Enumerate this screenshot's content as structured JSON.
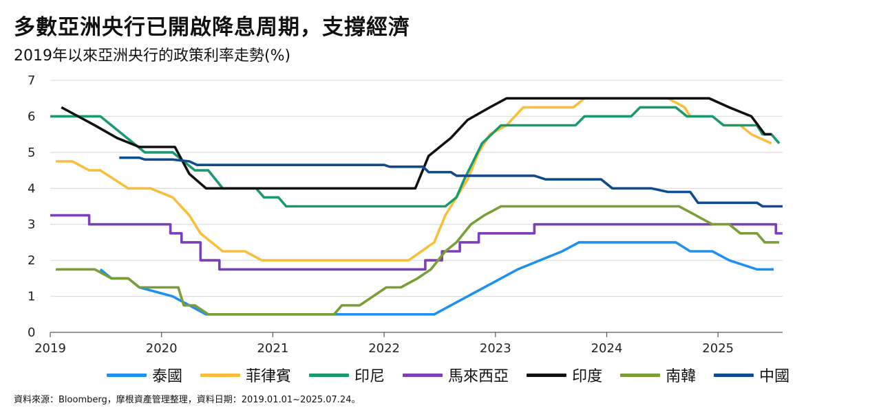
{
  "header": {
    "title": "多數亞洲央行已開啟降息周期，支撐經濟",
    "subtitle": "2019年以來亞洲央行的政策利率走勢(%)"
  },
  "footer": {
    "source": "資料來源：Bloomberg，摩根資產管理整理，資料日期：2019.01.01~2025.07.24。"
  },
  "chart_data": {
    "type": "line",
    "title": "多數亞洲央行已開啟降息周期，支撐經濟",
    "subtitle": "2019年以來亞洲央行的政策利率走勢(%)",
    "xlabel": "",
    "ylabel": "",
    "xlim": [
      2019.0,
      2025.58
    ],
    "ylim": [
      0,
      7
    ],
    "x_ticks": [
      2019,
      2020,
      2021,
      2022,
      2023,
      2024,
      2025
    ],
    "y_ticks": [
      0,
      1,
      2,
      3,
      4,
      5,
      6,
      7
    ],
    "grid": "horizontal",
    "legend_position": "bottom",
    "series": [
      {
        "name": "泰國",
        "color": "#1E90F0",
        "points": [
          [
            2019.45,
            1.75
          ],
          [
            2019.55,
            1.5
          ],
          [
            2019.7,
            1.5
          ],
          [
            2019.8,
            1.25
          ],
          [
            2020.1,
            1.0
          ],
          [
            2020.25,
            0.75
          ],
          [
            2020.4,
            0.5
          ],
          [
            2022.45,
            0.5
          ],
          [
            2022.6,
            0.75
          ],
          [
            2022.75,
            1.0
          ],
          [
            2022.9,
            1.25
          ],
          [
            2023.05,
            1.5
          ],
          [
            2023.2,
            1.75
          ],
          [
            2023.4,
            2.0
          ],
          [
            2023.6,
            2.25
          ],
          [
            2023.75,
            2.5
          ],
          [
            2024.62,
            2.5
          ],
          [
            2024.75,
            2.25
          ],
          [
            2024.95,
            2.25
          ],
          [
            2025.1,
            2.0
          ],
          [
            2025.35,
            1.75
          ],
          [
            2025.5,
            1.75
          ]
        ]
      },
      {
        "name": "菲律賓",
        "color": "#F9BE3C",
        "points": [
          [
            2019.05,
            4.75
          ],
          [
            2019.2,
            4.75
          ],
          [
            2019.35,
            4.5
          ],
          [
            2019.45,
            4.5
          ],
          [
            2019.7,
            4.0
          ],
          [
            2019.9,
            4.0
          ],
          [
            2020.1,
            3.75
          ],
          [
            2020.25,
            3.25
          ],
          [
            2020.35,
            2.75
          ],
          [
            2020.55,
            2.25
          ],
          [
            2020.75,
            2.25
          ],
          [
            2020.9,
            2.0
          ],
          [
            2022.22,
            2.0
          ],
          [
            2022.45,
            2.5
          ],
          [
            2022.55,
            3.25
          ],
          [
            2022.65,
            3.75
          ],
          [
            2022.75,
            4.25
          ],
          [
            2022.85,
            5.0
          ],
          [
            2022.95,
            5.5
          ],
          [
            2023.1,
            5.75
          ],
          [
            2023.25,
            6.25
          ],
          [
            2023.7,
            6.25
          ],
          [
            2023.8,
            6.5
          ],
          [
            2024.55,
            6.5
          ],
          [
            2024.7,
            6.25
          ],
          [
            2024.75,
            6.0
          ],
          [
            2024.95,
            6.0
          ],
          [
            2025.05,
            5.75
          ],
          [
            2025.2,
            5.75
          ],
          [
            2025.3,
            5.5
          ],
          [
            2025.48,
            5.25
          ]
        ]
      },
      {
        "name": "印尼",
        "color": "#1A9A6C",
        "points": [
          [
            2019.0,
            6.0
          ],
          [
            2019.45,
            6.0
          ],
          [
            2019.55,
            5.75
          ],
          [
            2019.65,
            5.5
          ],
          [
            2019.75,
            5.25
          ],
          [
            2019.85,
            5.0
          ],
          [
            2020.1,
            5.0
          ],
          [
            2020.2,
            4.75
          ],
          [
            2020.3,
            4.5
          ],
          [
            2020.42,
            4.5
          ],
          [
            2020.55,
            4.0
          ],
          [
            2020.85,
            4.0
          ],
          [
            2020.92,
            3.75
          ],
          [
            2021.05,
            3.75
          ],
          [
            2021.12,
            3.5
          ],
          [
            2022.55,
            3.5
          ],
          [
            2022.65,
            3.75
          ],
          [
            2022.72,
            4.25
          ],
          [
            2022.8,
            4.75
          ],
          [
            2022.88,
            5.25
          ],
          [
            2023.05,
            5.75
          ],
          [
            2023.72,
            5.75
          ],
          [
            2023.8,
            6.0
          ],
          [
            2024.22,
            6.0
          ],
          [
            2024.3,
            6.25
          ],
          [
            2024.62,
            6.25
          ],
          [
            2024.72,
            6.0
          ],
          [
            2024.95,
            6.0
          ],
          [
            2025.05,
            5.75
          ],
          [
            2025.35,
            5.75
          ],
          [
            2025.4,
            5.5
          ],
          [
            2025.48,
            5.5
          ],
          [
            2025.55,
            5.25
          ]
        ]
      },
      {
        "name": "馬來西亞",
        "color": "#7B3FB8",
        "points": [
          [
            2019.0,
            3.25
          ],
          [
            2019.35,
            3.25
          ],
          [
            2019.35,
            3.0
          ],
          [
            2020.08,
            3.0
          ],
          [
            2020.08,
            2.75
          ],
          [
            2020.18,
            2.75
          ],
          [
            2020.18,
            2.5
          ],
          [
            2020.35,
            2.5
          ],
          [
            2020.35,
            2.0
          ],
          [
            2020.52,
            2.0
          ],
          [
            2020.52,
            1.75
          ],
          [
            2022.37,
            1.75
          ],
          [
            2022.37,
            2.0
          ],
          [
            2022.52,
            2.0
          ],
          [
            2022.52,
            2.25
          ],
          [
            2022.68,
            2.25
          ],
          [
            2022.68,
            2.5
          ],
          [
            2022.85,
            2.5
          ],
          [
            2022.85,
            2.75
          ],
          [
            2023.35,
            2.75
          ],
          [
            2023.35,
            3.0
          ],
          [
            2025.52,
            3.0
          ],
          [
            2025.52,
            2.75
          ],
          [
            2025.58,
            2.75
          ]
        ]
      },
      {
        "name": "印度",
        "color": "#111111",
        "points": [
          [
            2019.1,
            6.25
          ],
          [
            2019.4,
            5.75
          ],
          [
            2019.6,
            5.4
          ],
          [
            2019.8,
            5.15
          ],
          [
            2020.12,
            5.15
          ],
          [
            2020.25,
            4.4
          ],
          [
            2020.4,
            4.0
          ],
          [
            2022.28,
            4.0
          ],
          [
            2022.4,
            4.9
          ],
          [
            2022.6,
            5.4
          ],
          [
            2022.75,
            5.9
          ],
          [
            2022.95,
            6.25
          ],
          [
            2023.1,
            6.5
          ],
          [
            2024.92,
            6.5
          ],
          [
            2025.1,
            6.25
          ],
          [
            2025.3,
            6.0
          ],
          [
            2025.42,
            5.5
          ],
          [
            2025.48,
            5.5
          ]
        ]
      },
      {
        "name": "南韓",
        "color": "#7A9E35",
        "points": [
          [
            2019.05,
            1.75
          ],
          [
            2019.4,
            1.75
          ],
          [
            2019.55,
            1.5
          ],
          [
            2019.7,
            1.5
          ],
          [
            2019.8,
            1.25
          ],
          [
            2020.15,
            1.25
          ],
          [
            2020.2,
            0.75
          ],
          [
            2020.3,
            0.75
          ],
          [
            2020.42,
            0.5
          ],
          [
            2021.55,
            0.5
          ],
          [
            2021.62,
            0.75
          ],
          [
            2021.78,
            0.75
          ],
          [
            2021.9,
            1.0
          ],
          [
            2022.02,
            1.25
          ],
          [
            2022.15,
            1.25
          ],
          [
            2022.3,
            1.5
          ],
          [
            2022.42,
            1.75
          ],
          [
            2022.55,
            2.25
          ],
          [
            2022.65,
            2.5
          ],
          [
            2022.78,
            3.0
          ],
          [
            2022.9,
            3.25
          ],
          [
            2023.05,
            3.5
          ],
          [
            2024.65,
            3.5
          ],
          [
            2024.8,
            3.25
          ],
          [
            2024.95,
            3.0
          ],
          [
            2025.1,
            3.0
          ],
          [
            2025.2,
            2.75
          ],
          [
            2025.35,
            2.75
          ],
          [
            2025.42,
            2.5
          ],
          [
            2025.55,
            2.5
          ]
        ]
      },
      {
        "name": "中國",
        "color": "#0F4B8F",
        "points": [
          [
            2019.62,
            4.85
          ],
          [
            2019.8,
            4.85
          ],
          [
            2019.85,
            4.8
          ],
          [
            2020.1,
            4.8
          ],
          [
            2020.25,
            4.75
          ],
          [
            2020.32,
            4.65
          ],
          [
            2022.0,
            4.65
          ],
          [
            2022.05,
            4.6
          ],
          [
            2022.35,
            4.6
          ],
          [
            2022.4,
            4.45
          ],
          [
            2022.6,
            4.45
          ],
          [
            2022.65,
            4.35
          ],
          [
            2023.35,
            4.35
          ],
          [
            2023.45,
            4.25
          ],
          [
            2023.95,
            4.25
          ],
          [
            2024.05,
            4.0
          ],
          [
            2024.4,
            4.0
          ],
          [
            2024.55,
            3.9
          ],
          [
            2024.75,
            3.9
          ],
          [
            2024.82,
            3.6
          ],
          [
            2025.35,
            3.6
          ],
          [
            2025.4,
            3.5
          ],
          [
            2025.58,
            3.5
          ]
        ]
      }
    ]
  }
}
